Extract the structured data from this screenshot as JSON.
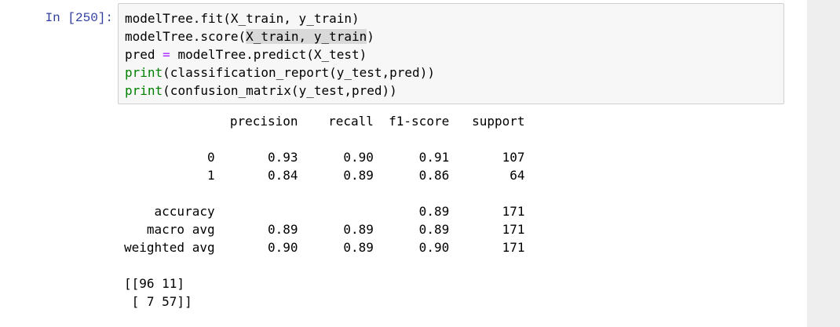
{
  "cell": {
    "prompt": "In [250]:",
    "code_lines": [
      {
        "parts": [
          {
            "text": "modelTree.fit(X_train, y_train)"
          }
        ]
      },
      {
        "parts": [
          {
            "text": "modelTree.score("
          },
          {
            "text": "X_train, y_train",
            "selected": true
          },
          {
            "text": ")"
          }
        ]
      },
      {
        "parts": [
          {
            "text": "pred "
          },
          {
            "text": "=",
            "op": true
          },
          {
            "text": " modelTree.predict(X_test)"
          }
        ]
      },
      {
        "parts": [
          {
            "text": "print",
            "builtin": true
          },
          {
            "text": "(classification_report(y_test,pred))"
          }
        ]
      },
      {
        "parts": [
          {
            "text": "print",
            "builtin": true
          },
          {
            "text": "(confusion_matrix(y_test,pred))"
          }
        ]
      }
    ]
  },
  "output": {
    "lines": [
      "              precision    recall  f1-score   support",
      "",
      "           0       0.93      0.90      0.91       107",
      "           1       0.84      0.89      0.86        64",
      "",
      "    accuracy                           0.89       171",
      "   macro avg       0.89      0.89      0.89       171",
      "weighted avg       0.90      0.89      0.90       171",
      "",
      "[[96 11]",
      " [ 7 57]]"
    ]
  },
  "colors": {
    "prompt": "#303f9f",
    "builtin": "#008000",
    "operator": "#aa22ff",
    "input_bg": "#f7f7f7",
    "input_border": "#cfcfcf"
  }
}
